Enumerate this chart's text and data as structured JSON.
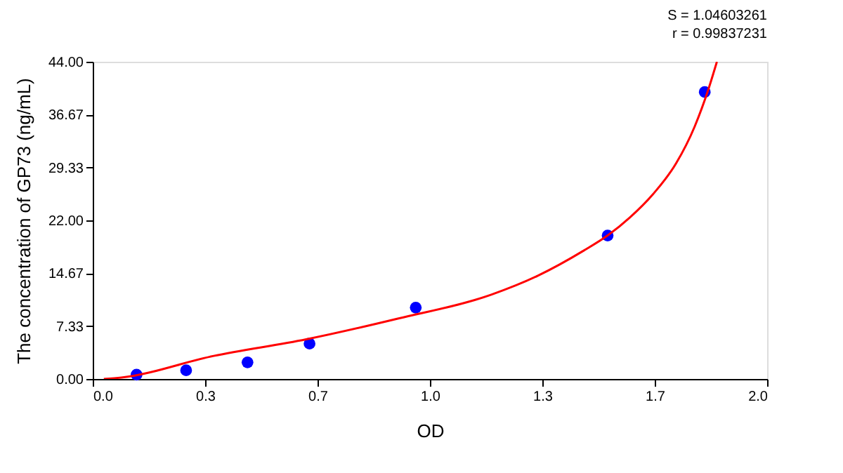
{
  "chart_data": {
    "type": "scatter",
    "xlabel": "OD",
    "ylabel": "The concentration of GP73 (ng/mL)",
    "annotations": [
      "S = 1.04603261",
      "r = 0.99837231"
    ],
    "xlim": [
      0,
      2
    ],
    "ylim": [
      0,
      44
    ],
    "xticks": [
      {
        "value": 0,
        "label": "0.0"
      },
      {
        "value": 0.3333,
        "label": "0.3"
      },
      {
        "value": 0.6667,
        "label": "0.7"
      },
      {
        "value": 1,
        "label": "1.0"
      },
      {
        "value": 1.3333,
        "label": "1.3"
      },
      {
        "value": 1.6667,
        "label": "1.7"
      },
      {
        "value": 2,
        "label": "2.0"
      }
    ],
    "yticks": [
      {
        "value": 0,
        "label": "0.00"
      },
      {
        "value": 7.3333,
        "label": "7.33"
      },
      {
        "value": 14.6667,
        "label": "14.67"
      },
      {
        "value": 22,
        "label": "22.00"
      },
      {
        "value": 29.3333,
        "label": "29.33"
      },
      {
        "value": 36.6667,
        "label": "36.67"
      },
      {
        "value": 44,
        "label": "44.00"
      }
    ],
    "grid": false,
    "series": [
      {
        "marker": "circle",
        "color": "#0000ff",
        "x": [
          0.13,
          0.277,
          0.459,
          0.643,
          0.958,
          1.527,
          1.815
        ],
        "values": [
          0.6,
          1.2,
          2.3,
          4.9,
          9.9,
          19.9,
          39.8
        ]
      },
      {
        "type": "line",
        "line_style": "solid",
        "marker": "none",
        "color": "#ff0000",
        "x": [
          0.033,
          0.085,
          0.359,
          0.633,
          0.907,
          1.182,
          1.319,
          1.456,
          1.527,
          1.593,
          1.661,
          1.73,
          1.785,
          1.826,
          1.851
        ],
        "values": [
          0,
          0.2,
          3.2,
          5.5,
          8.4,
          11.7,
          14.3,
          17.8,
          19.9,
          22.4,
          25.6,
          29.9,
          35,
          40.2,
          44
        ]
      }
    ]
  }
}
